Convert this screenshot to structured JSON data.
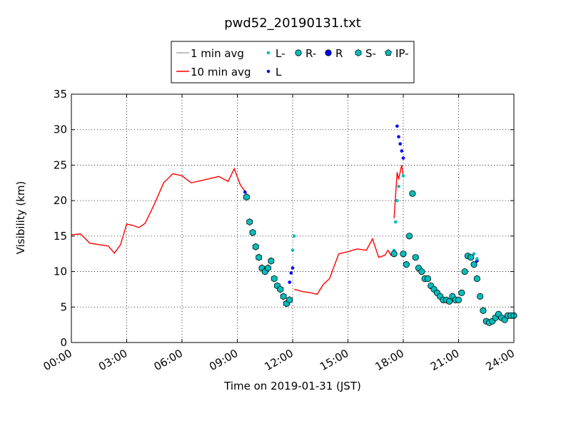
{
  "chart_data": {
    "type": "line",
    "title": "pwd52_20190131.txt",
    "xlabel": "Time on 2019-01-31 (JST)",
    "ylabel": "Visibility (km)",
    "xlim": [
      "00:00",
      "24:00"
    ],
    "ylim": [
      0,
      35
    ],
    "x_ticks": [
      "00:00",
      "03:00",
      "06:00",
      "09:00",
      "12:00",
      "15:00",
      "18:00",
      "21:00",
      "24:00"
    ],
    "y_ticks": [
      0,
      5,
      10,
      15,
      20,
      25,
      30,
      35
    ],
    "grid": true,
    "legend_placement": "top-center",
    "legend": [
      {
        "label": "1 min avg",
        "kind": "line",
        "color": "#aaaaaa"
      },
      {
        "label": "10 min avg",
        "kind": "line",
        "color": "#ff0000"
      },
      {
        "label": "L-",
        "kind": "small-dot",
        "color": "#00bfbf"
      },
      {
        "label": "L",
        "kind": "small-dot",
        "color": "#0000ff"
      },
      {
        "label": "R-",
        "kind": "circle",
        "color": "#00bfbf"
      },
      {
        "label": "R",
        "kind": "circle",
        "color": "#0000ff"
      },
      {
        "label": "S-",
        "kind": "hexagon",
        "color": "#00bfbf"
      },
      {
        "label": "IP-",
        "kind": "pentagon",
        "color": "#00bfbf"
      }
    ],
    "series": [
      {
        "name": "10 min avg",
        "color": "#ff0000",
        "x": [
          "00:00",
          "00:30",
          "01:00",
          "01:30",
          "02:00",
          "02:20",
          "02:40",
          "03:00",
          "03:20",
          "03:40",
          "04:00",
          "04:30",
          "05:00",
          "05:30",
          "06:00",
          "06:30",
          "07:00",
          "07:30",
          "08:00",
          "08:30",
          "08:50",
          "09:10",
          "09:30"
        ],
        "y": [
          15.2,
          15.3,
          14.0,
          13.8,
          13.6,
          12.6,
          13.8,
          16.7,
          16.5,
          16.2,
          16.8,
          19.5,
          22.5,
          23.8,
          23.5,
          22.5,
          22.8,
          23.1,
          23.4,
          22.7,
          24.5,
          22.2,
          21.0
        ]
      },
      {
        "name": "10 min avg",
        "color": "#ff0000",
        "x": [
          "12:05",
          "12:30",
          "13:00",
          "13:20",
          "13:40",
          "14:00",
          "14:30",
          "15:00",
          "15:30",
          "16:00",
          "16:20",
          "16:40",
          "17:00",
          "17:10",
          "17:20",
          "17:25"
        ],
        "y": [
          7.5,
          7.2,
          7.0,
          6.8,
          8.2,
          9.0,
          12.5,
          12.8,
          13.2,
          13.0,
          14.6,
          12.0,
          12.3,
          13.0,
          12.3,
          12.5
        ]
      },
      {
        "name": "10 min avg",
        "color": "#ff0000",
        "x": [
          "17:30",
          "17:40",
          "17:45",
          "17:55",
          "18:00"
        ],
        "y": [
          17.5,
          24.0,
          23.0,
          25.0,
          23.5
        ]
      }
    ],
    "markers": [
      {
        "type": "S-",
        "x": [
          "09:30",
          "09:40",
          "09:50",
          "10:00",
          "10:10",
          "10:20",
          "10:30",
          "10:40",
          "10:50",
          "11:00",
          "11:10",
          "11:20",
          "11:30",
          "11:40",
          "11:50"
        ],
        "y": [
          20.5,
          17.0,
          15.5,
          13.5,
          12.0,
          10.5,
          10.0,
          10.5,
          11.5,
          9.0,
          8.0,
          7.5,
          6.5,
          5.5,
          6.0
        ]
      },
      {
        "type": "L",
        "x": [
          "11:50",
          "11:55",
          "12:00",
          "09:25",
          "17:40",
          "17:45",
          "17:50",
          "17:55",
          "18:00",
          "21:05",
          "22:00"
        ],
        "y": [
          8.5,
          9.8,
          10.5,
          21.2,
          30.5,
          29.0,
          28.0,
          27.0,
          26.0,
          6.0,
          11.5
        ]
      },
      {
        "type": "L-",
        "x": [
          "12:00",
          "12:05",
          "17:30",
          "17:35",
          "17:40",
          "17:45",
          "18:00",
          "21:50",
          "22:00"
        ],
        "y": [
          13.0,
          15.0,
          13.0,
          17.0,
          20.0,
          22.0,
          23.5,
          12.5,
          11.8
        ]
      },
      {
        "type": "R-",
        "x": [
          "17:30",
          "18:00",
          "18:10",
          "18:20",
          "18:30",
          "18:40",
          "18:50",
          "19:00",
          "19:10",
          "19:20",
          "19:30",
          "19:40",
          "19:50",
          "20:00",
          "20:10",
          "20:20",
          "20:30",
          "20:40",
          "20:50",
          "21:00",
          "21:10",
          "21:20",
          "21:30",
          "21:40",
          "21:50",
          "22:00",
          "22:10",
          "22:20",
          "22:30",
          "22:40",
          "22:50",
          "23:00",
          "23:10",
          "23:20",
          "23:30",
          "23:40",
          "23:50",
          "24:00"
        ],
        "y": [
          12.5,
          12.5,
          11.0,
          15.0,
          21.0,
          12.0,
          10.5,
          10.0,
          9.0,
          9.0,
          8.0,
          7.5,
          7.0,
          6.5,
          6.0,
          6.0,
          5.8,
          6.5,
          6.0,
          6.0,
          7.0,
          10.0,
          12.2,
          12.0,
          11.0,
          9.0,
          6.5,
          4.5,
          3.0,
          2.8,
          3.0,
          3.5,
          4.0,
          3.5,
          3.2,
          3.8,
          3.8,
          3.8
        ]
      }
    ]
  }
}
